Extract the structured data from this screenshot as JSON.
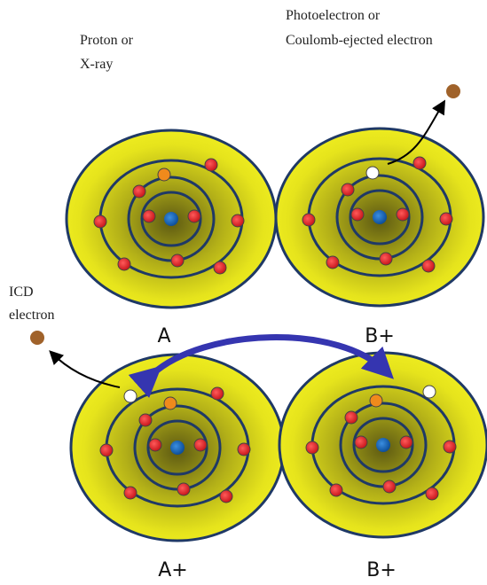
{
  "labels": {
    "source": [
      "Proton or",
      "X-ray"
    ],
    "ejected": [
      "Photoelectron or",
      "Coulomb-ejected electron"
    ],
    "icd": [
      "ICD",
      "electron"
    ]
  },
  "atoms": [
    {
      "label": "A"
    },
    {
      "label": "B+"
    },
    {
      "label": "A+"
    },
    {
      "label": "B+"
    }
  ]
}
